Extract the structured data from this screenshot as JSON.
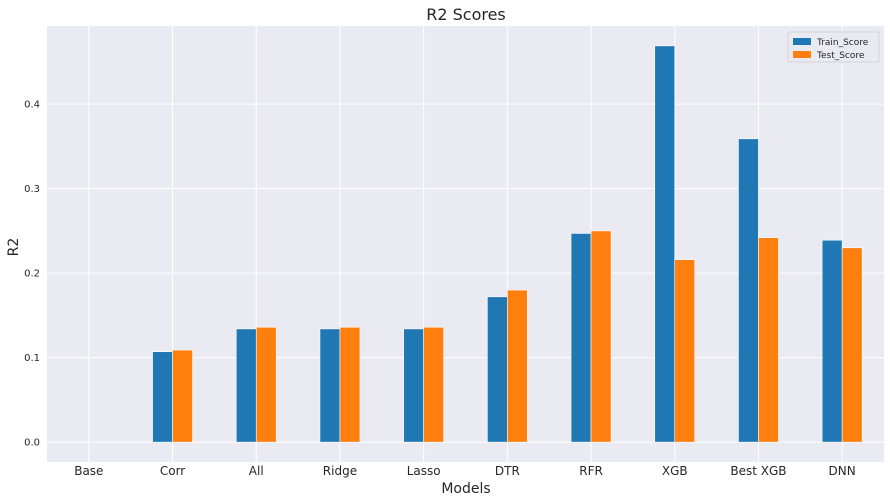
{
  "chart_data": {
    "type": "bar",
    "title": "R2 Scores",
    "xlabel": "Models",
    "ylabel": "R2",
    "categories": [
      "Base",
      "Corr",
      "All",
      "Ridge",
      "Lasso",
      "DTR",
      "RFR",
      "XGB",
      "Best XGB",
      "DNN"
    ],
    "series": [
      {
        "name": "Train_Score",
        "color": "#1f77b4",
        "values": [
          0.0,
          0.107,
          0.134,
          0.134,
          0.134,
          0.172,
          0.247,
          0.469,
          0.359,
          0.239
        ]
      },
      {
        "name": "Test_Score",
        "color": "#ff7f0e",
        "values": [
          0.0,
          0.109,
          0.136,
          0.136,
          0.136,
          0.18,
          0.25,
          0.216,
          0.242,
          0.23
        ]
      }
    ],
    "yticks": [
      "0.0",
      "0.1",
      "0.2",
      "0.3",
      "0.4"
    ],
    "ylim": [
      -0.0235,
      0.4925
    ],
    "grid": true,
    "legend_position": "top-right",
    "background_color": "#eaeaf2",
    "grid_color": "#ffffff"
  }
}
